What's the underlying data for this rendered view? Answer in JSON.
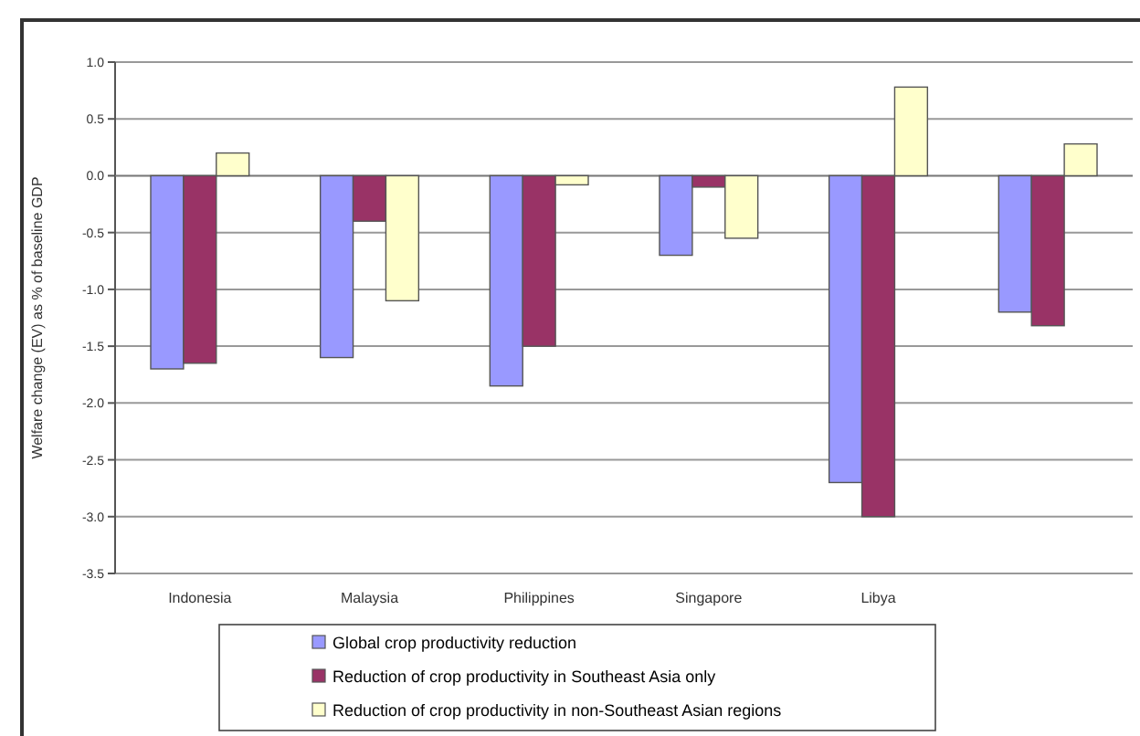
{
  "chart_data": {
    "type": "bar",
    "ylabel": "Welfare change (EV) as % of baseline GDP",
    "categories": [
      "Indonesia",
      "Malaysia",
      "Philippines",
      "Singapore",
      "Libya",
      null
    ],
    "series": [
      {
        "name": "Global crop productivity reduction",
        "color": "#9999ff",
        "values": [
          -1.7,
          -1.6,
          -1.85,
          -0.7,
          -2.7,
          -1.2
        ]
      },
      {
        "name": "Reduction of crop productivity in Southeast Asia only",
        "color": "#993366",
        "values": [
          -1.65,
          -0.4,
          -1.5,
          -0.1,
          -3.0,
          -1.32
        ]
      },
      {
        "name": "Reduction of crop productivity in non-Southeast Asian regions",
        "color": "#ffffcc",
        "values": [
          0.2,
          -1.1,
          -0.08,
          -0.55,
          0.78,
          0.28
        ]
      }
    ],
    "ylim": [
      -3.5,
      1
    ],
    "yticks": [
      {
        "value": -3.5,
        "label": "-3.5"
      },
      {
        "value": -3,
        "label": "-3.0"
      },
      {
        "value": -2.5,
        "label": "-2.5"
      },
      {
        "value": -2,
        "label": "-2.0"
      },
      {
        "value": -1.5,
        "label": "-1.5"
      },
      {
        "value": -1,
        "label": "-1.0"
      },
      {
        "value": -0.5,
        "label": "-0.5"
      },
      {
        "value": 0,
        "label": "0.0"
      },
      {
        "value": 0.5,
        "label": "0.5"
      },
      {
        "value": 1,
        "label": "1.0"
      }
    ],
    "grid": "y",
    "legend": "bottom"
  }
}
